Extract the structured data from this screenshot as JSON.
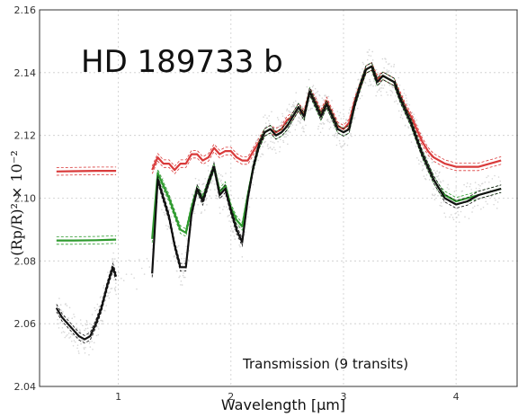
{
  "chart_data": {
    "type": "line",
    "title": "HD 189733 b",
    "annotation": "Transmission (9 transits)",
    "xlabel": "Wavelength [μm]",
    "ylabel": "(Rp/R)² × 10⁻²",
    "xlim": [
      0.3,
      4.55
    ],
    "ylim": [
      2.04,
      2.16
    ],
    "xticks": [
      1,
      2,
      3,
      4
    ],
    "yticks": [
      2.04,
      2.06,
      2.08,
      2.1,
      2.12,
      2.14,
      2.16
    ],
    "ytick_labels": [
      "2.04",
      "2.06",
      "2.08",
      "2.10",
      "2.12",
      "2.14",
      "2.16"
    ],
    "grid": true,
    "series": [
      {
        "color": "#d93a3a",
        "segments": [
          {
            "x": [
              0.45,
              0.6,
              0.8,
              0.98
            ],
            "y": [
              2.1085,
              2.1086,
              2.1087,
              2.1087
            ]
          },
          {
            "x": [
              1.3,
              1.35,
              1.4,
              1.45,
              1.5,
              1.55,
              1.6,
              1.65,
              1.7,
              1.75,
              1.8,
              1.85,
              1.9,
              1.95,
              2.0,
              2.05,
              2.1,
              2.15,
              2.2,
              2.25,
              2.3,
              2.35,
              2.4,
              2.45,
              2.5,
              2.55,
              2.6,
              2.65,
              2.7,
              2.75,
              2.8,
              2.85,
              2.9,
              2.95,
              3.0,
              3.05,
              3.1,
              3.15,
              3.2,
              3.25,
              3.3,
              3.35,
              3.4,
              3.45,
              3.5,
              3.55,
              3.6,
              3.65,
              3.7,
              3.75,
              3.8,
              3.85,
              3.9,
              4.0,
              4.1,
              4.2,
              4.3,
              4.4
            ],
            "y": [
              2.109,
              2.113,
              2.111,
              2.111,
              2.109,
              2.111,
              2.111,
              2.114,
              2.114,
              2.112,
              2.113,
              2.116,
              2.114,
              2.115,
              2.115,
              2.113,
              2.112,
              2.112,
              2.115,
              2.118,
              2.121,
              2.122,
              2.121,
              2.122,
              2.125,
              2.126,
              2.129,
              2.127,
              2.134,
              2.131,
              2.127,
              2.131,
              2.127,
              2.123,
              2.122,
              2.124,
              2.131,
              2.136,
              2.141,
              2.142,
              2.138,
              2.139,
              2.138,
              2.137,
              2.133,
              2.129,
              2.126,
              2.122,
              2.118,
              2.115,
              2.113,
              2.112,
              2.111,
              2.11,
              2.11,
              2.11,
              2.111,
              2.112
            ]
          }
        ]
      },
      {
        "color": "#2e9a2e",
        "segments": [
          {
            "x": [
              0.45,
              0.6,
              0.8,
              0.98
            ],
            "y": [
              2.0865,
              2.0865,
              2.0866,
              2.0868
            ]
          },
          {
            "x": [
              1.3,
              1.35,
              1.4,
              1.45,
              1.5,
              1.55,
              1.6,
              1.65,
              1.7,
              1.75,
              1.8,
              1.85,
              1.9,
              1.95,
              2.0,
              2.05,
              2.1,
              2.15,
              2.2,
              2.25,
              2.3,
              2.35,
              2.4,
              2.45,
              2.5,
              2.55,
              2.6,
              2.65,
              2.7,
              2.75,
              2.8,
              2.85,
              2.9,
              2.95,
              3.0,
              3.05,
              3.1,
              3.15,
              3.2,
              3.25,
              3.3,
              3.35,
              3.4,
              3.45,
              3.5,
              3.55,
              3.6,
              3.65,
              3.7,
              3.75,
              3.8,
              3.85,
              3.9,
              4.0,
              4.1,
              4.2,
              4.3,
              4.4
            ],
            "y": [
              2.087,
              2.108,
              2.104,
              2.1,
              2.095,
              2.09,
              2.089,
              2.097,
              2.103,
              2.1,
              2.105,
              2.11,
              2.102,
              2.104,
              2.097,
              2.093,
              2.091,
              2.101,
              2.11,
              2.117,
              2.121,
              2.122,
              2.12,
              2.121,
              2.123,
              2.126,
              2.129,
              2.126,
              2.134,
              2.13,
              2.126,
              2.13,
              2.126,
              2.122,
              2.121,
              2.122,
              2.13,
              2.136,
              2.141,
              2.142,
              2.137,
              2.139,
              2.138,
              2.137,
              2.132,
              2.128,
              2.124,
              2.119,
              2.114,
              2.11,
              2.106,
              2.103,
              2.101,
              2.099,
              2.1,
              2.101,
              2.102,
              2.103
            ]
          }
        ]
      },
      {
        "color": "#111111",
        "segments": [
          {
            "x": [
              0.45,
              0.5,
              0.55,
              0.6,
              0.65,
              0.7,
              0.75,
              0.8,
              0.85,
              0.9,
              0.95,
              0.98
            ],
            "y": [
              2.065,
              2.062,
              2.06,
              2.058,
              2.056,
              2.055,
              2.056,
              2.06,
              2.065,
              2.072,
              2.078,
              2.075
            ]
          },
          {
            "x": [
              1.3,
              1.35,
              1.4,
              1.45,
              1.5,
              1.55,
              1.6,
              1.65,
              1.7,
              1.75,
              1.8,
              1.85,
              1.9,
              1.95,
              2.0,
              2.05,
              2.1,
              2.15,
              2.2,
              2.25,
              2.3,
              2.35,
              2.4,
              2.45,
              2.5,
              2.55,
              2.6,
              2.65,
              2.7,
              2.75,
              2.8,
              2.85,
              2.9,
              2.95,
              3.0,
              3.05,
              3.1,
              3.15,
              3.2,
              3.25,
              3.3,
              3.35,
              3.4,
              3.45,
              3.5,
              3.55,
              3.6,
              3.65,
              3.7,
              3.75,
              3.8,
              3.85,
              3.9,
              4.0,
              4.1,
              4.2,
              4.3,
              4.4
            ],
            "y": [
              2.076,
              2.106,
              2.1,
              2.094,
              2.085,
              2.078,
              2.078,
              2.095,
              2.103,
              2.099,
              2.105,
              2.11,
              2.101,
              2.103,
              2.096,
              2.09,
              2.086,
              2.1,
              2.11,
              2.117,
              2.121,
              2.122,
              2.12,
              2.121,
              2.123,
              2.126,
              2.129,
              2.126,
              2.134,
              2.13,
              2.126,
              2.13,
              2.126,
              2.122,
              2.121,
              2.122,
              2.13,
              2.136,
              2.141,
              2.142,
              2.137,
              2.139,
              2.138,
              2.137,
              2.132,
              2.128,
              2.124,
              2.119,
              2.114,
              2.11,
              2.106,
              2.103,
              2.1,
              2.098,
              2.099,
              2.101,
              2.102,
              2.103
            ]
          }
        ]
      }
    ]
  }
}
